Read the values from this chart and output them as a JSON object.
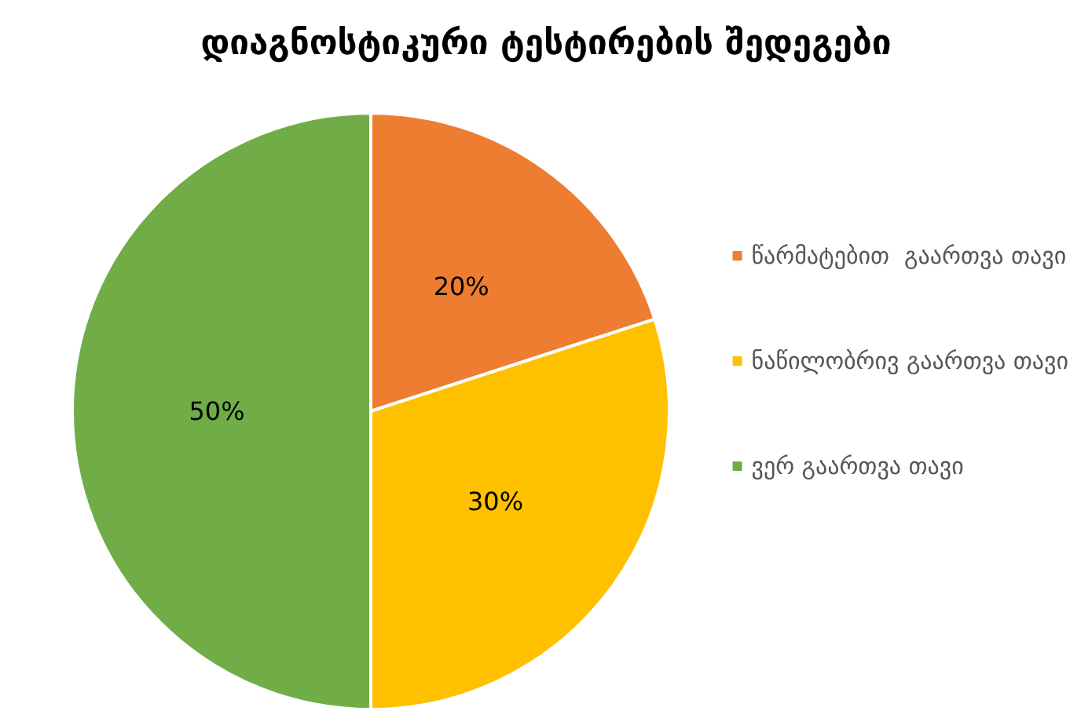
{
  "chart_data": {
    "type": "pie",
    "title": "დიაგნოსტიკური ტესტირების შედეგები",
    "categories": [
      "წარმატებით  გაართვა თავი",
      "ნაწილობრივ გაართვა თავი",
      "ვერ გაართვა თავი"
    ],
    "values": [
      20,
      30,
      50
    ],
    "colors": [
      "#ed7d31",
      "#ffc000",
      "#70ad47"
    ],
    "value_labels": [
      "20%",
      "30%",
      "50%"
    ],
    "legend": "right"
  }
}
